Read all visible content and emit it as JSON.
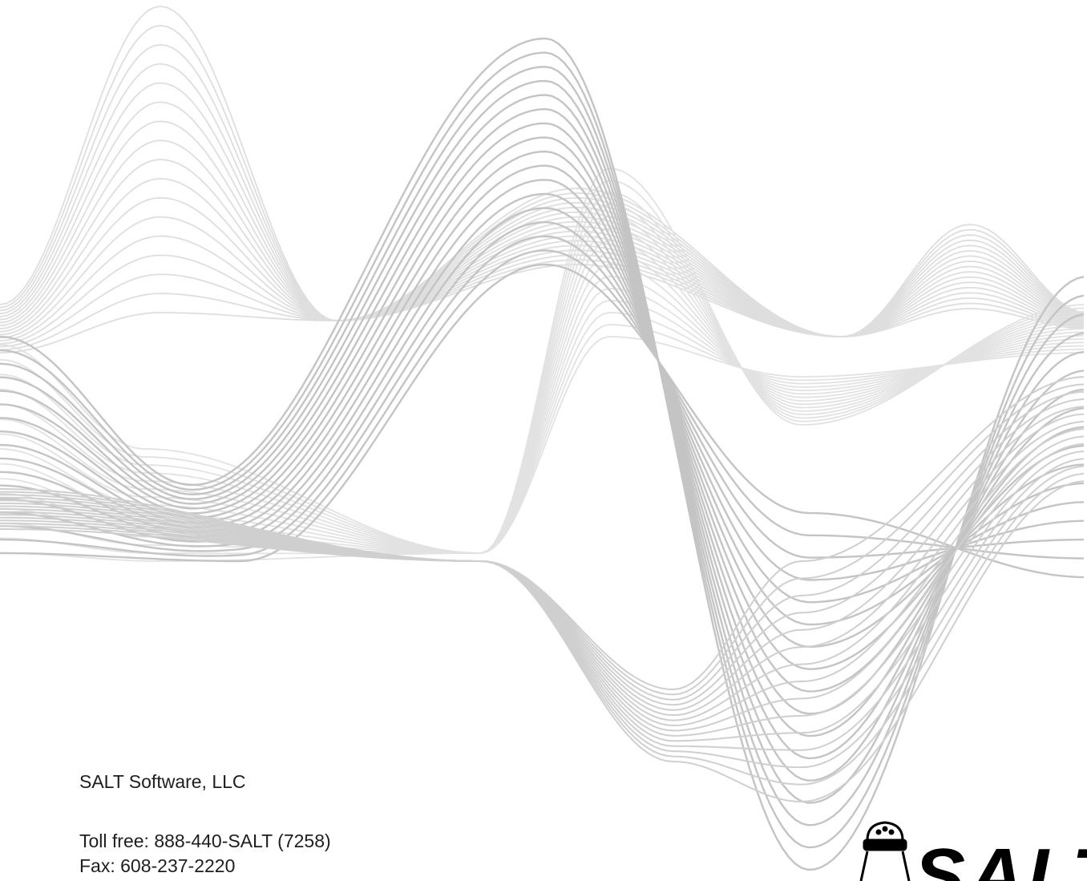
{
  "company": "SALT Software, LLC",
  "contact": {
    "toll_free": "Toll free: 888-440-SALT (7258)",
    "fax": "Fax: 608-237-2220"
  },
  "logo": {
    "text": "SALT"
  }
}
